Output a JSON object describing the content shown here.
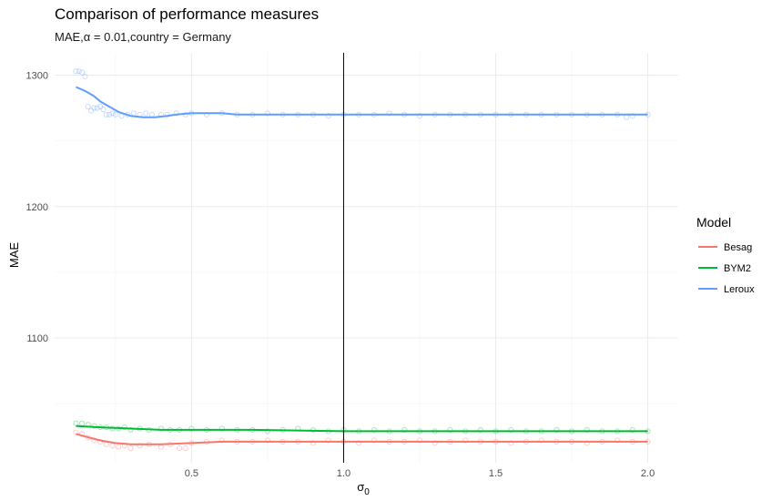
{
  "chart_data": {
    "type": "line",
    "title": "Comparison of performance measures",
    "subtitle": "MAE,α = 0.01,country = Germany",
    "xlabel": "σ",
    "xlabel_sub": "0",
    "ylabel": "MAE",
    "xlim": [
      0.05,
      2.1
    ],
    "ylim": [
      1005,
      1317
    ],
    "xticks": [
      0.5,
      1.0,
      1.5,
      2.0
    ],
    "xtick_labels": [
      "0.5",
      "1.0",
      "1.5",
      "2.0"
    ],
    "yticks": [
      1100,
      1200,
      1300
    ],
    "ytick_labels": [
      "1100",
      "1200",
      "1300"
    ],
    "vline_x": 1.0,
    "grid": true,
    "legend": {
      "title": "Model",
      "position": "right"
    },
    "series": [
      {
        "name": "Besag",
        "color": "#F8766D",
        "line_x": [
          0.12,
          0.15,
          0.2,
          0.25,
          0.3,
          0.35,
          0.4,
          0.5,
          0.6,
          0.7,
          0.8,
          1.0,
          1.2,
          1.5,
          1.8,
          2.0
        ],
        "line_y": [
          1027,
          1025,
          1022,
          1020,
          1019,
          1019,
          1019,
          1020,
          1021,
          1021,
          1021,
          1021,
          1021,
          1021,
          1021,
          1021
        ],
        "points_x": [
          0.12,
          0.14,
          0.16,
          0.18,
          0.2,
          0.22,
          0.24,
          0.26,
          0.28,
          0.3,
          0.33,
          0.36,
          0.4,
          0.43,
          0.46,
          0.48,
          0.5,
          0.55,
          0.6,
          0.65,
          0.7,
          0.75,
          0.8,
          0.85,
          0.9,
          0.95,
          1.0,
          1.05,
          1.1,
          1.15,
          1.2,
          1.25,
          1.3,
          1.35,
          1.4,
          1.45,
          1.5,
          1.55,
          1.6,
          1.65,
          1.7,
          1.75,
          1.8,
          1.85,
          1.9,
          1.95,
          2.0
        ],
        "points_y": [
          1028,
          1027,
          1024,
          1022,
          1021,
          1019,
          1018,
          1017,
          1018,
          1016,
          1018,
          1019,
          1017,
          1019,
          1016,
          1016,
          1020,
          1021,
          1022,
          1021,
          1021,
          1022,
          1021,
          1021,
          1020,
          1022,
          1021,
          1020,
          1022,
          1021,
          1021,
          1022,
          1020,
          1021,
          1022,
          1021,
          1021,
          1020,
          1021,
          1022,
          1021,
          1021,
          1020,
          1021,
          1022,
          1021,
          1021
        ]
      },
      {
        "name": "BYM2",
        "color": "#00BA38",
        "line_x": [
          0.12,
          0.2,
          0.3,
          0.4,
          0.5,
          0.7,
          1.0,
          1.5,
          2.0
        ],
        "line_y": [
          1033,
          1032,
          1031,
          1030,
          1030,
          1030,
          1029,
          1029,
          1029
        ],
        "points_x": [
          0.12,
          0.14,
          0.16,
          0.18,
          0.2,
          0.22,
          0.24,
          0.26,
          0.28,
          0.3,
          0.33,
          0.36,
          0.4,
          0.43,
          0.46,
          0.5,
          0.55,
          0.6,
          0.65,
          0.7,
          0.75,
          0.8,
          0.85,
          0.9,
          0.95,
          1.0,
          1.05,
          1.1,
          1.15,
          1.2,
          1.25,
          1.3,
          1.35,
          1.4,
          1.45,
          1.5,
          1.55,
          1.6,
          1.65,
          1.7,
          1.75,
          1.8,
          1.85,
          1.9,
          1.95,
          2.0
        ],
        "points_y": [
          1035,
          1035,
          1034,
          1033,
          1032,
          1032,
          1031,
          1031,
          1032,
          1030,
          1031,
          1030,
          1031,
          1030,
          1030,
          1031,
          1030,
          1031,
          1030,
          1030,
          1029,
          1030,
          1031,
          1030,
          1029,
          1030,
          1029,
          1030,
          1029,
          1030,
          1029,
          1029,
          1030,
          1029,
          1030,
          1029,
          1030,
          1029,
          1029,
          1030,
          1029,
          1030,
          1029,
          1029,
          1030,
          1029
        ]
      },
      {
        "name": "Leroux",
        "color": "#619CFF",
        "line_x": [
          0.12,
          0.15,
          0.18,
          0.2,
          0.23,
          0.26,
          0.3,
          0.34,
          0.38,
          0.42,
          0.45,
          0.5,
          0.55,
          0.6,
          0.65,
          0.7,
          0.8,
          0.9,
          1.0,
          1.2,
          1.5,
          1.8,
          2.0
        ],
        "line_y": [
          1291,
          1288,
          1284,
          1280,
          1276,
          1272,
          1269,
          1268,
          1268,
          1269,
          1270,
          1271,
          1271,
          1271,
          1270,
          1270,
          1270,
          1270,
          1270,
          1270,
          1270,
          1270,
          1270
        ],
        "points_x": [
          0.12,
          0.13,
          0.14,
          0.15,
          0.16,
          0.17,
          0.18,
          0.19,
          0.2,
          0.21,
          0.22,
          0.23,
          0.24,
          0.25,
          0.27,
          0.29,
          0.31,
          0.33,
          0.35,
          0.37,
          0.4,
          0.42,
          0.45,
          0.48,
          0.5,
          0.55,
          0.6,
          0.65,
          0.7,
          0.75,
          0.8,
          0.85,
          0.9,
          0.95,
          1.0,
          1.05,
          1.1,
          1.15,
          1.2,
          1.25,
          1.3,
          1.35,
          1.4,
          1.45,
          1.5,
          1.55,
          1.6,
          1.65,
          1.7,
          1.75,
          1.8,
          1.85,
          1.9,
          1.93,
          1.95,
          2.0
        ],
        "points_y": [
          1303,
          1303,
          1302,
          1299,
          1276,
          1273,
          1275,
          1275,
          1276,
          1274,
          1270,
          1270,
          1271,
          1270,
          1269,
          1270,
          1271,
          1270,
          1271,
          1270,
          1270,
          1270,
          1271,
          1270,
          1271,
          1270,
          1271,
          1270,
          1270,
          1271,
          1270,
          1270,
          1270,
          1269,
          1270,
          1270,
          1270,
          1271,
          1270,
          1269,
          1270,
          1270,
          1270,
          1270,
          1270,
          1270,
          1270,
          1270,
          1270,
          1270,
          1270,
          1270,
          1270,
          1268,
          1269,
          1270
        ]
      }
    ]
  }
}
